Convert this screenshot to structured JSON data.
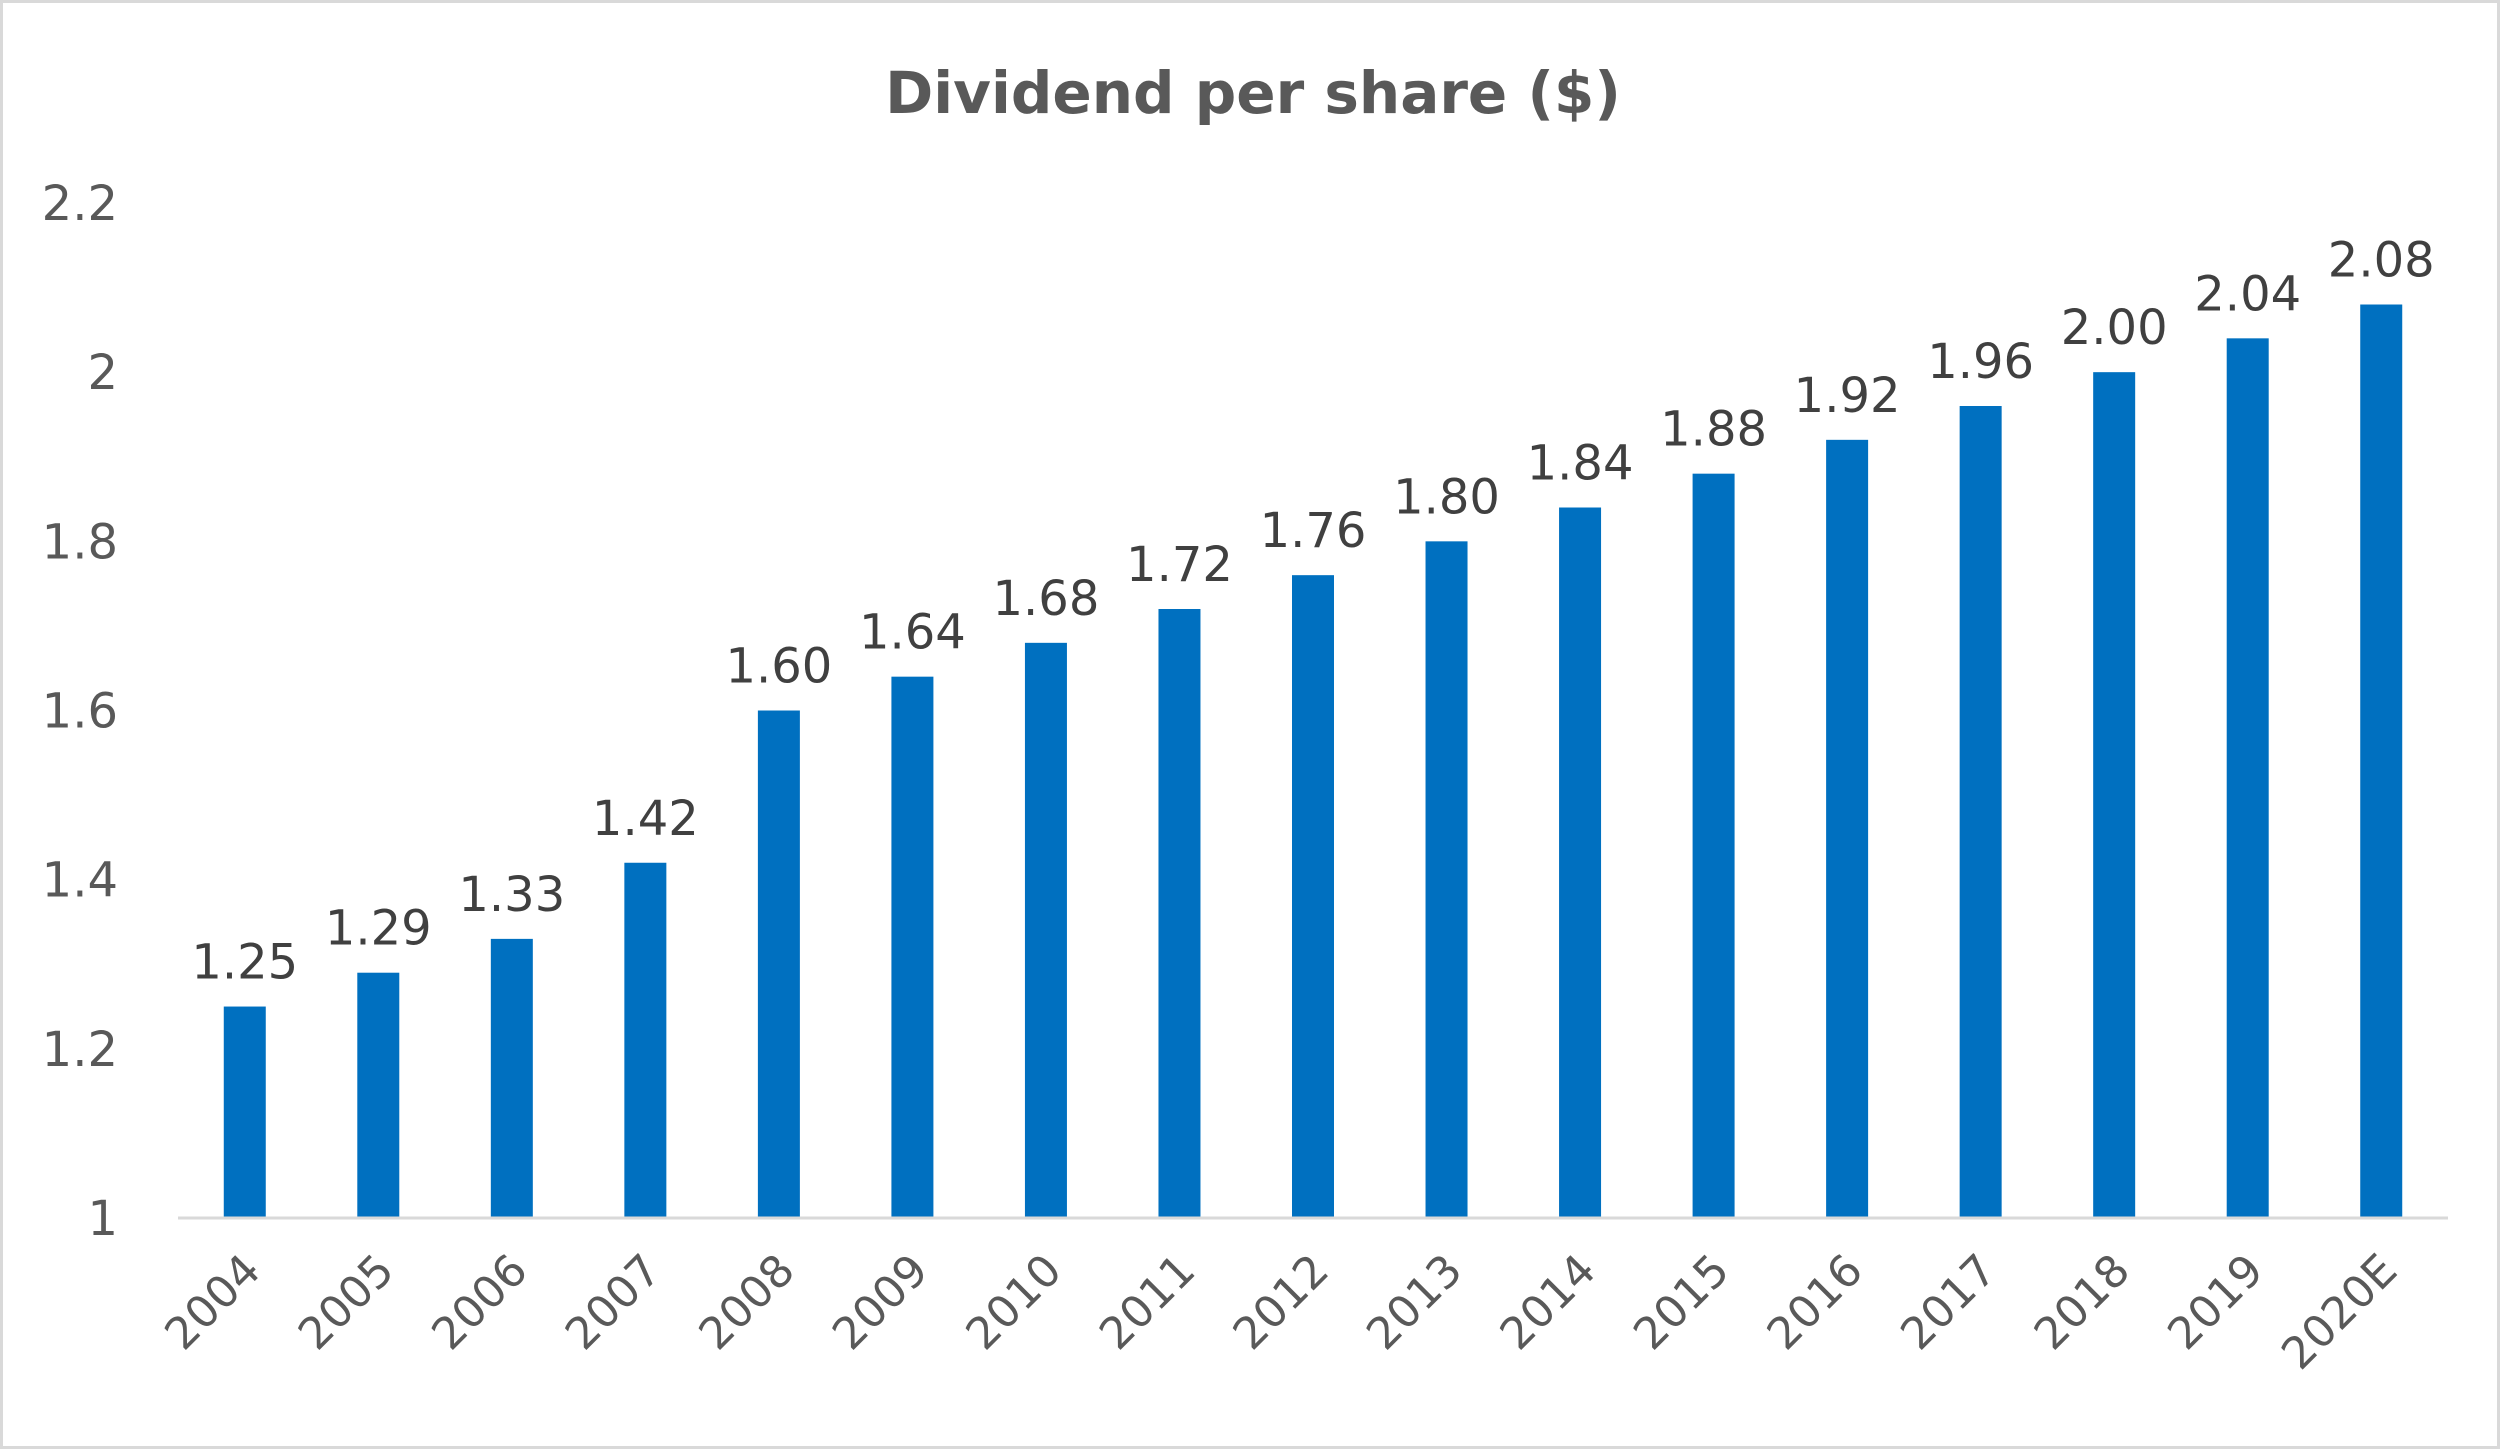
{
  "chart_data": {
    "type": "bar",
    "title": "Dividend per share ($)",
    "xlabel": "",
    "ylabel": "",
    "categories": [
      "2004",
      "2005",
      "2006",
      "2007",
      "2008",
      "2009",
      "2010",
      "2011",
      "2012",
      "2013",
      "2014",
      "2015",
      "2016",
      "2017",
      "2018",
      "2019",
      "2020E"
    ],
    "values": [
      1.25,
      1.29,
      1.33,
      1.42,
      1.6,
      1.64,
      1.68,
      1.72,
      1.76,
      1.8,
      1.84,
      1.88,
      1.92,
      1.96,
      2.0,
      2.04,
      2.08
    ],
    "data_labels": [
      "1.25",
      "1.29",
      "1.33",
      "1.42",
      "1.60",
      "1.64",
      "1.68",
      "1.72",
      "1.76",
      "1.80",
      "1.84",
      "1.88",
      "1.92",
      "1.96",
      "2.00",
      "2.04",
      "2.08"
    ],
    "ylim": [
      1,
      2.2
    ],
    "yticks": [
      1,
      1.2,
      1.4,
      1.6,
      1.8,
      2,
      2.2
    ],
    "ytick_labels": [
      "1",
      "1.2",
      "1.4",
      "1.6",
      "1.8",
      "2",
      "2.2"
    ],
    "grid": false,
    "legend": "none",
    "bar_color": "#0070C0"
  }
}
